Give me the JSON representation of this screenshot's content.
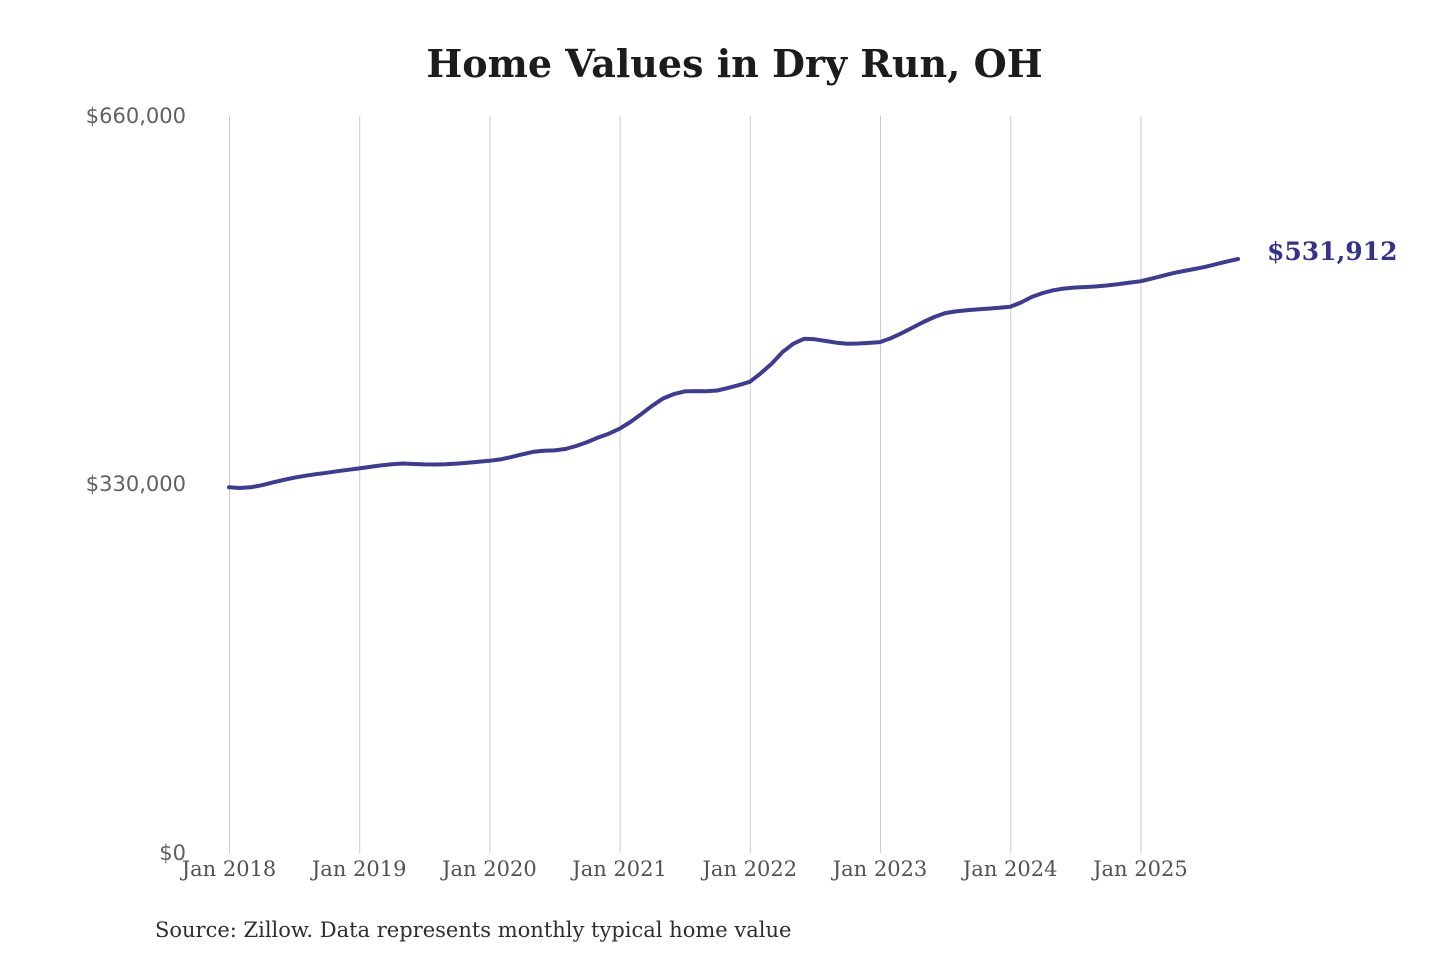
{
  "title": "Home Values in Dry Run, OH",
  "end_label": "$531,912",
  "source_note": "Source: Zillow. Data represents monthly typical home value",
  "y_axis": {
    "labels": [
      "$660,000",
      "$330,000",
      "$0"
    ]
  },
  "colors": {
    "line": "#3d3b94",
    "end_label": "#333387",
    "gridline": "#cbcbcb",
    "title": "#1c1c1c",
    "y_text": "#616161",
    "x_text": "#525252",
    "source_text": "#2e2e2e"
  },
  "chart_data": {
    "type": "line",
    "title": "Home Values in Dry Run, OH",
    "series_name": "Monthly typical home value",
    "source": "Source: Zillow. Data represents monthly typical home value",
    "ylabel": "",
    "xlabel": "",
    "ylim": [
      0,
      660000
    ],
    "y_ticks": [
      0,
      330000,
      660000
    ],
    "y_tick_labels": [
      "$0",
      "$330,000",
      "$660,000"
    ],
    "x_tick_labels": [
      "Jan 2018",
      "Jan 2019",
      "Jan 2020",
      "Jan 2021",
      "Jan 2022",
      "Jan 2023",
      "Jan 2024",
      "Jan 2025"
    ],
    "grid": "vertical-only",
    "legend": false,
    "final_value": 531912,
    "final_value_label": "$531,912",
    "x": [
      "2018-01",
      "2018-02",
      "2018-03",
      "2018-04",
      "2018-05",
      "2018-06",
      "2018-07",
      "2018-08",
      "2018-09",
      "2018-10",
      "2018-11",
      "2018-12",
      "2019-01",
      "2019-02",
      "2019-03",
      "2019-04",
      "2019-05",
      "2019-06",
      "2019-07",
      "2019-08",
      "2019-09",
      "2019-10",
      "2019-11",
      "2019-12",
      "2020-01",
      "2020-02",
      "2020-03",
      "2020-04",
      "2020-05",
      "2020-06",
      "2020-07",
      "2020-08",
      "2020-09",
      "2020-10",
      "2020-11",
      "2020-12",
      "2021-01",
      "2021-02",
      "2021-03",
      "2021-04",
      "2021-05",
      "2021-06",
      "2021-07",
      "2021-08",
      "2021-09",
      "2021-10",
      "2021-11",
      "2021-12",
      "2022-01",
      "2022-02",
      "2022-03",
      "2022-04",
      "2022-05",
      "2022-06",
      "2022-07",
      "2022-08",
      "2022-09",
      "2022-10",
      "2022-11",
      "2022-12",
      "2023-01",
      "2023-02",
      "2023-03",
      "2023-04",
      "2023-05",
      "2023-06",
      "2023-07",
      "2023-08",
      "2023-09",
      "2023-10",
      "2023-11",
      "2023-12",
      "2024-01",
      "2024-02",
      "2024-03",
      "2024-04",
      "2024-05",
      "2024-06",
      "2024-07",
      "2024-08",
      "2024-09",
      "2024-10",
      "2024-11",
      "2024-12",
      "2025-01",
      "2025-02",
      "2025-03",
      "2025-04",
      "2025-05",
      "2025-06",
      "2025-07",
      "2025-08",
      "2025-09",
      "2025-10"
    ],
    "values": [
      327500,
      326900,
      327500,
      329300,
      331700,
      334000,
      336100,
      337800,
      339200,
      340500,
      341900,
      343200,
      344400,
      345800,
      347100,
      348200,
      348800,
      348400,
      348000,
      347900,
      348100,
      348700,
      349400,
      350300,
      351200,
      352500,
      354500,
      357000,
      359200,
      360200,
      360500,
      361800,
      364500,
      368000,
      372000,
      375500,
      380000,
      386000,
      393000,
      400500,
      407000,
      411000,
      413400,
      413600,
      413500,
      414200,
      416500,
      419000,
      422000,
      429500,
      438000,
      448500,
      456000,
      460500,
      460000,
      458500,
      457000,
      456000,
      456300,
      456800,
      457500,
      461000,
      465500,
      470500,
      475500,
      480000,
      483500,
      485000,
      486000,
      486800,
      487500,
      488200,
      489200,
      493000,
      498000,
      501500,
      504000,
      505500,
      506400,
      506900,
      507400,
      508300,
      509500,
      510800,
      512000,
      514300,
      516800,
      519200,
      521200,
      523000,
      525000,
      527400,
      529800,
      531912
    ]
  }
}
